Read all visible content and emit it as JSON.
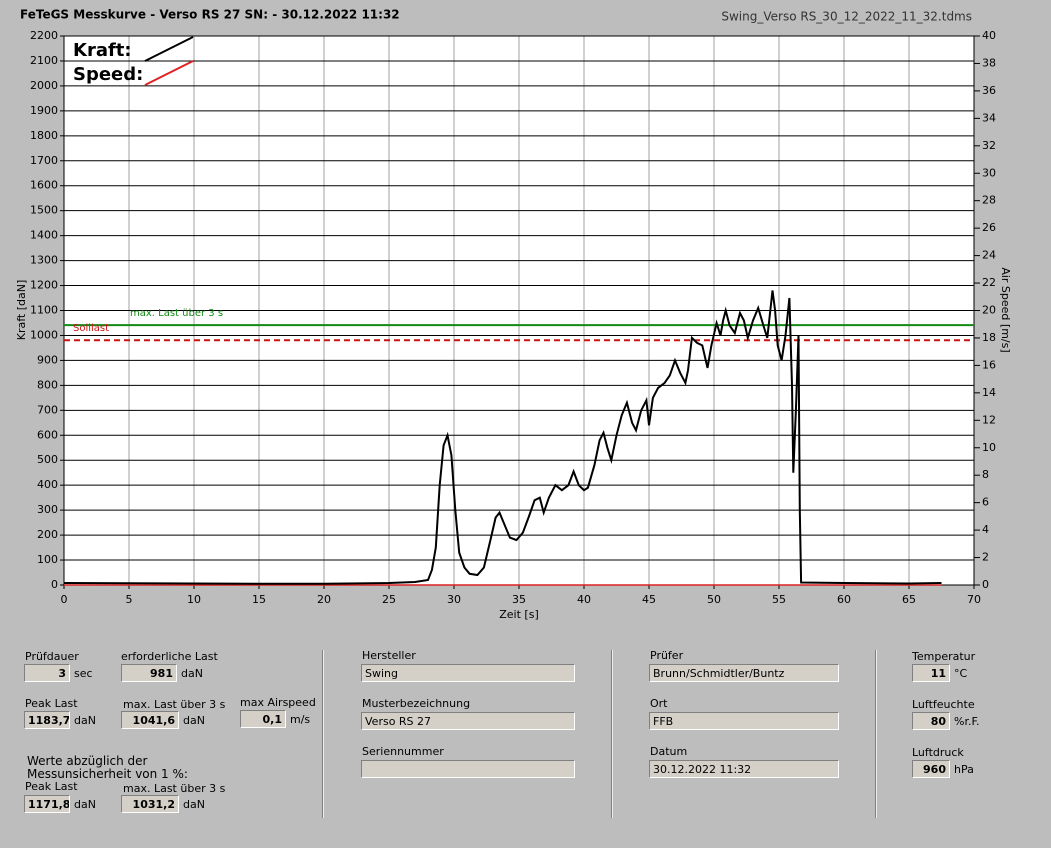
{
  "header": {
    "title": "FeTeGS Messkurve - Verso RS 27  SN:  - 30.12.2022 11:32",
    "file": "Swing_Verso RS_30_12_2022_11_32.tdms"
  },
  "chart_data": {
    "type": "line",
    "x_label": "Zeit [s]",
    "y_label": "Kraft [daN]",
    "y2_label": "Air Speed [m/s]",
    "xlim": [
      0,
      70
    ],
    "xticks": [
      0,
      5,
      10,
      15,
      20,
      25,
      30,
      35,
      40,
      45,
      50,
      55,
      60,
      65,
      70
    ],
    "ylim": [
      0,
      2200
    ],
    "yticks": [
      0,
      100,
      200,
      300,
      400,
      500,
      600,
      700,
      800,
      900,
      1000,
      1100,
      1200,
      1300,
      1400,
      1500,
      1600,
      1700,
      1800,
      1900,
      2000,
      2100,
      2200
    ],
    "y2lim": [
      0,
      40
    ],
    "y2ticks": [
      0,
      2,
      4,
      6,
      8,
      10,
      12,
      14,
      16,
      18,
      20,
      22,
      24,
      26,
      28,
      30,
      32,
      34,
      36,
      38,
      40
    ],
    "grid": true,
    "reference_lines": [
      {
        "label": "max. Last über  3 s",
        "value": 1041.6,
        "color": "#138a13",
        "dashed": false
      },
      {
        "label": "Solllast",
        "value": 981,
        "color": "#cc1111",
        "dashed": true
      }
    ],
    "series": [
      {
        "name": "Kraft:",
        "color": "#000000",
        "x": [
          0,
          5,
          10,
          15,
          20,
          25,
          27,
          28,
          28.3,
          28.6,
          28.9,
          29.2,
          29.5,
          29.8,
          30.1,
          30.4,
          30.8,
          31.2,
          31.8,
          32.3,
          32.8,
          33.2,
          33.5,
          33.9,
          34.3,
          34.8,
          35.3,
          35.8,
          36.2,
          36.6,
          36.9,
          37.3,
          37.8,
          38.3,
          38.8,
          39.2,
          39.6,
          40,
          40.3,
          40.8,
          41.2,
          41.5,
          41.8,
          42.1,
          42.5,
          42.9,
          43.3,
          43.7,
          44,
          44.4,
          44.8,
          45,
          45.3,
          45.7,
          46.2,
          46.6,
          47,
          47.4,
          47.8,
          48,
          48.3,
          48.7,
          49.1,
          49.5,
          49.8,
          50.2,
          50.5,
          50.7,
          50.9,
          51.2,
          51.6,
          52,
          52.3,
          52.6,
          53,
          53.4,
          53.8,
          54.1,
          54.5,
          54.7,
          54.9,
          55.2,
          55.5,
          55.8,
          56,
          56.1,
          56.3,
          56.5,
          56.6,
          56.7,
          60,
          65,
          67.5
        ],
        "values": [
          8,
          7,
          6,
          5,
          5,
          8,
          12,
          20,
          60,
          150,
          400,
          560,
          600,
          520,
          300,
          130,
          70,
          45,
          40,
          70,
          180,
          270,
          290,
          240,
          190,
          180,
          210,
          280,
          340,
          350,
          290,
          350,
          400,
          380,
          400,
          455,
          400,
          380,
          390,
          480,
          580,
          610,
          550,
          500,
          600,
          680,
          730,
          650,
          620,
          700,
          740,
          640,
          750,
          790,
          810,
          840,
          900,
          850,
          810,
          860,
          990,
          970,
          960,
          870,
          960,
          1050,
          1000,
          1060,
          1100,
          1040,
          1010,
          1090,
          1060,
          990,
          1060,
          1110,
          1040,
          990,
          1180,
          1100,
          960,
          900,
          1000,
          1150,
          800,
          450,
          700,
          1000,
          300,
          10,
          8,
          6,
          8
        ]
      },
      {
        "name": "Speed:",
        "color": "#dd2222",
        "axis": "y2",
        "x": [
          0,
          67.5
        ],
        "values": [
          0,
          0
        ]
      }
    ]
  },
  "fields": [
    {
      "label": "Prüfdauer",
      "value": "3",
      "unit": "sec"
    },
    {
      "label": "erforderliche Last",
      "value": "981",
      "unit": "daN"
    },
    {
      "label": "Peak Last",
      "value": "1183,7",
      "unit": "daN"
    },
    {
      "label": "max. Last über  3 s",
      "value": "1041,6",
      "unit": "daN"
    },
    {
      "label": "max Airspeed",
      "value": "0,1",
      "unit": "m/s"
    },
    {
      "label": "Peak Last",
      "value": "1171,8",
      "unit": "daN"
    },
    {
      "label": "max. Last über  3 s",
      "value": "1031,2",
      "unit": "daN"
    },
    {
      "label": "Hersteller",
      "value": "Swing"
    },
    {
      "label": "Musterbezeichnung",
      "value": "Verso RS 27"
    },
    {
      "label": "Seriennummer"
    },
    {
      "label": "Prüfer",
      "value": "Brunn/Schmidtler/Buntz"
    },
    {
      "label": "Ort",
      "value": "FFB"
    },
    {
      "label": "Datum",
      "value": "30.12.2022 11:32"
    },
    {
      "label": "Temperatur",
      "value": "11",
      "unit": "°C"
    },
    {
      "label": "Luftfeuchte",
      "value": "80",
      "unit": "%r.F."
    },
    {
      "label": "Luftdruck",
      "value": "960",
      "unit": "hPa"
    }
  ],
  "note": [
    "Werte abzüglich der",
    "Messunsicherheit von 1  %:"
  ]
}
